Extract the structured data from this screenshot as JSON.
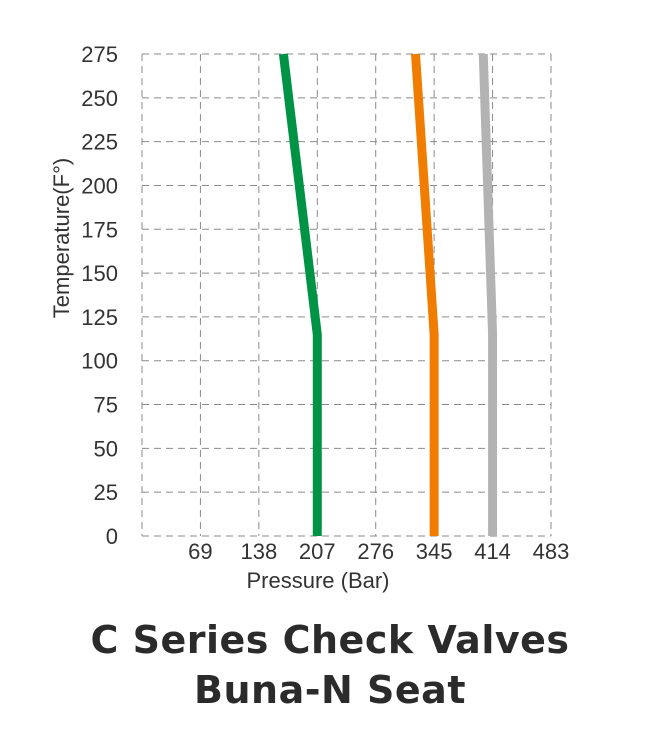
{
  "chart_data": {
    "type": "line",
    "title": [
      "C Series Check Valves",
      "Buna-N Seat"
    ],
    "xlabel": "Pressure (Bar)",
    "ylabel": "Temperature(F°)",
    "xlim": [
      0,
      483
    ],
    "ylim": [
      0,
      275
    ],
    "xticks": [
      0,
      69,
      138,
      207,
      276,
      345,
      414,
      483
    ],
    "xtick_labels": [
      "",
      "69",
      "138",
      "207",
      "276",
      "345",
      "414",
      "483"
    ],
    "yticks": [
      0,
      25,
      50,
      75,
      100,
      125,
      150,
      175,
      200,
      225,
      250,
      275
    ],
    "ytick_labels": [
      "0",
      "25",
      "50",
      "75",
      "100",
      "125",
      "150",
      "175",
      "200",
      "225",
      "250",
      "275"
    ],
    "grid": true,
    "series": [
      {
        "color": "#009245",
        "points": [
          [
            207,
            0
          ],
          [
            207,
            115
          ],
          [
            167,
            275
          ]
        ]
      },
      {
        "color": "#F07C00",
        "points": [
          [
            345,
            0
          ],
          [
            345,
            115
          ],
          [
            323,
            275
          ]
        ]
      },
      {
        "color": "#B3B3B3",
        "points": [
          [
            414,
            0
          ],
          [
            414,
            115
          ],
          [
            403,
            275
          ]
        ]
      }
    ]
  }
}
